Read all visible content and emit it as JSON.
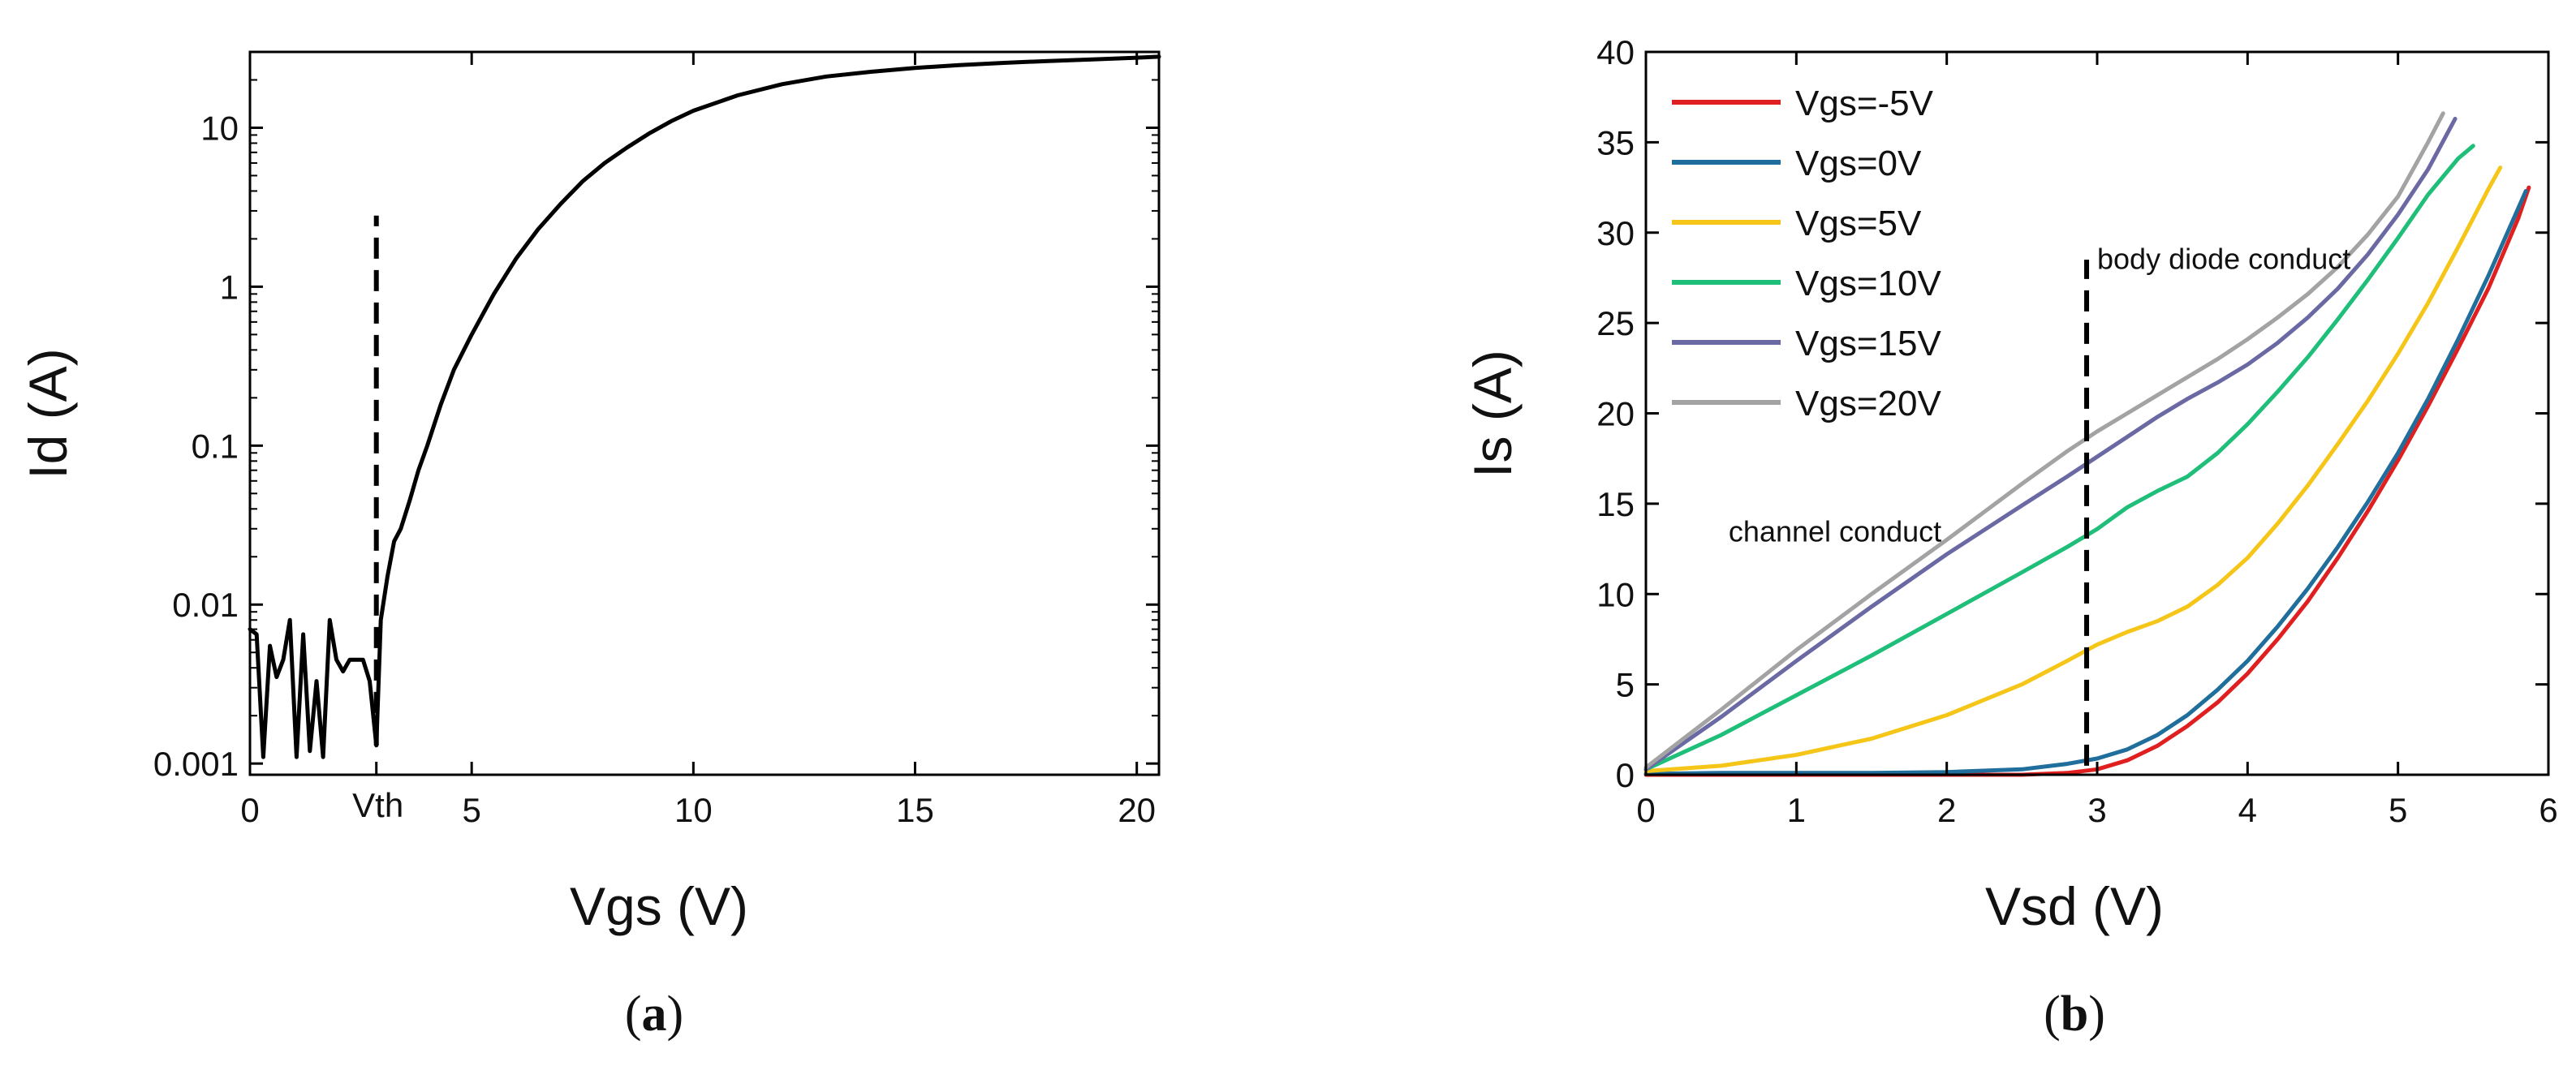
{
  "chart_data": [
    {
      "type": "line",
      "caption_open": "(",
      "caption_letter": "a",
      "caption_close": ")",
      "xlabel": "Vgs (V)",
      "ylabel": "Id (A)",
      "xlim": [
        0,
        20.5
      ],
      "ylim": [
        0.00085,
        30
      ],
      "yscale": "log",
      "xticks": [
        0,
        5,
        10,
        15,
        20
      ],
      "xtick_labels": [
        "0",
        "5",
        "10",
        "15",
        "20"
      ],
      "extra_xtick": {
        "x": 2.85,
        "label": "Vth"
      },
      "yticks": [
        0.001,
        0.01,
        0.1,
        1,
        10
      ],
      "ytick_labels": [
        "0.001",
        "0.01",
        "0.1",
        "1",
        "10"
      ],
      "vline": {
        "x": 2.85,
        "y_from": 0.0013,
        "y_to": 2.8,
        "style": "dashed"
      },
      "series": [
        {
          "color": "#000000",
          "x": [
            0.0,
            0.15,
            0.3,
            0.45,
            0.6,
            0.75,
            0.9,
            1.05,
            1.2,
            1.35,
            1.5,
            1.65,
            1.8,
            1.95,
            2.1,
            2.25,
            2.4,
            2.55,
            2.7,
            2.85,
            2.95,
            3.1,
            3.25,
            3.4,
            3.6,
            3.8,
            4.0,
            4.3,
            4.6,
            5.0,
            5.5,
            6.0,
            6.5,
            7.0,
            7.5,
            8.0,
            8.5,
            9.0,
            9.5,
            10.0,
            11.0,
            12.0,
            13.0,
            14.0,
            15.0,
            16.0,
            17.0,
            18.0,
            19.0,
            20.0,
            20.5
          ],
          "y": [
            0.007,
            0.0065,
            0.0011,
            0.0055,
            0.0035,
            0.0045,
            0.008,
            0.0011,
            0.0065,
            0.0012,
            0.0033,
            0.0011,
            0.008,
            0.0045,
            0.0038,
            0.0045,
            0.0045,
            0.0045,
            0.0033,
            0.0013,
            0.008,
            0.015,
            0.025,
            0.03,
            0.045,
            0.07,
            0.1,
            0.18,
            0.3,
            0.5,
            0.9,
            1.5,
            2.3,
            3.3,
            4.6,
            6.0,
            7.5,
            9.2,
            11.0,
            12.8,
            16.0,
            18.8,
            21.0,
            22.5,
            23.8,
            24.8,
            25.6,
            26.3,
            26.9,
            27.6,
            28.0
          ]
        }
      ]
    },
    {
      "type": "line",
      "caption_open": "(",
      "caption_letter": "b",
      "caption_close": ")",
      "xlabel": "Vsd (V)",
      "ylabel": "Is (A)",
      "xlim": [
        0,
        6
      ],
      "ylim": [
        0,
        40
      ],
      "xticks": [
        0,
        1,
        2,
        3,
        4,
        5,
        6
      ],
      "xtick_labels": [
        "0",
        "1",
        "2",
        "3",
        "4",
        "5",
        "6"
      ],
      "yticks": [
        0,
        5,
        10,
        15,
        20,
        25,
        30,
        35,
        40
      ],
      "ytick_labels": [
        "0",
        "5",
        "10",
        "15",
        "20",
        "25",
        "30",
        "35",
        "40"
      ],
      "vline": {
        "x": 2.93,
        "y_from": 0.5,
        "y_to": 28.5,
        "style": "dashed"
      },
      "annotations": [
        {
          "text": "body diode conduct",
          "x": 3.0,
          "y": 28.0
        },
        {
          "text": "channel conduct",
          "x": 0.55,
          "y": 12.9
        }
      ],
      "legend_position": "top-left",
      "series": [
        {
          "name": "Vgs=-5V",
          "color": "#e02020",
          "x": [
            0,
            0.5,
            1.0,
            1.5,
            2.0,
            2.5,
            2.8,
            3.0,
            3.2,
            3.4,
            3.6,
            3.8,
            4.0,
            4.2,
            4.4,
            4.6,
            4.8,
            5.0,
            5.2,
            5.4,
            5.6,
            5.8,
            5.87
          ],
          "y": [
            0,
            0,
            0,
            0,
            0,
            0,
            0.1,
            0.3,
            0.8,
            1.6,
            2.7,
            4.0,
            5.6,
            7.5,
            9.6,
            12.0,
            14.6,
            17.4,
            20.4,
            23.6,
            26.9,
            30.8,
            32.5
          ]
        },
        {
          "name": "Vgs=0V",
          "color": "#1f6e9c",
          "x": [
            0,
            0.5,
            1.0,
            1.5,
            2.0,
            2.5,
            2.8,
            3.0,
            3.2,
            3.4,
            3.6,
            3.8,
            4.0,
            4.2,
            4.4,
            4.6,
            4.8,
            5.0,
            5.2,
            5.4,
            5.6,
            5.85
          ],
          "y": [
            0.05,
            0.1,
            0.1,
            0.1,
            0.15,
            0.3,
            0.6,
            0.9,
            1.4,
            2.2,
            3.3,
            4.7,
            6.3,
            8.2,
            10.3,
            12.6,
            15.1,
            17.8,
            20.8,
            24.1,
            27.6,
            32.3
          ]
        },
        {
          "name": "Vgs=5V",
          "color": "#f5c518",
          "x": [
            0,
            0.5,
            1.0,
            1.5,
            2.0,
            2.5,
            2.8,
            3.0,
            3.2,
            3.4,
            3.6,
            3.8,
            4.0,
            4.2,
            4.4,
            4.6,
            4.8,
            5.0,
            5.2,
            5.4,
            5.6,
            5.68
          ],
          "y": [
            0.2,
            0.5,
            1.1,
            2.0,
            3.3,
            5.0,
            6.3,
            7.2,
            7.9,
            8.5,
            9.3,
            10.5,
            12.0,
            13.9,
            16.0,
            18.3,
            20.7,
            23.3,
            26.1,
            29.2,
            32.4,
            33.6
          ]
        },
        {
          "name": "Vgs=10V",
          "color": "#1fbf7a",
          "x": [
            0,
            0.5,
            1.0,
            1.5,
            2.0,
            2.5,
            2.8,
            3.0,
            3.2,
            3.4,
            3.6,
            3.8,
            4.0,
            4.2,
            4.4,
            4.6,
            4.8,
            5.0,
            5.2,
            5.4,
            5.5
          ],
          "y": [
            0.3,
            2.2,
            4.4,
            6.6,
            8.9,
            11.2,
            12.6,
            13.6,
            14.8,
            15.7,
            16.5,
            17.8,
            19.4,
            21.2,
            23.1,
            25.2,
            27.4,
            29.7,
            32.1,
            34.1,
            34.8
          ]
        },
        {
          "name": "Vgs=15V",
          "color": "#6a69a3",
          "x": [
            0,
            0.5,
            1.0,
            1.5,
            2.0,
            2.5,
            2.8,
            3.0,
            3.2,
            3.4,
            3.6,
            3.8,
            4.0,
            4.2,
            4.4,
            4.6,
            4.8,
            5.0,
            5.2,
            5.38
          ],
          "y": [
            0.3,
            3.2,
            6.3,
            9.3,
            12.2,
            14.9,
            16.5,
            17.6,
            18.7,
            19.8,
            20.8,
            21.7,
            22.7,
            23.9,
            25.3,
            26.9,
            28.8,
            31.0,
            33.5,
            36.3
          ]
        },
        {
          "name": "Vgs=20V",
          "color": "#a3a3a3",
          "x": [
            0,
            0.5,
            1.0,
            1.5,
            2.0,
            2.5,
            2.8,
            3.0,
            3.2,
            3.4,
            3.6,
            3.8,
            4.0,
            4.2,
            4.4,
            4.6,
            4.8,
            5.0,
            5.2,
            5.3
          ],
          "y": [
            0.4,
            3.6,
            6.9,
            10.0,
            13.0,
            16.1,
            17.9,
            19.0,
            20.0,
            21.0,
            22.0,
            23.0,
            24.1,
            25.3,
            26.6,
            28.1,
            29.9,
            32.0,
            35.0,
            36.6
          ]
        }
      ]
    }
  ]
}
